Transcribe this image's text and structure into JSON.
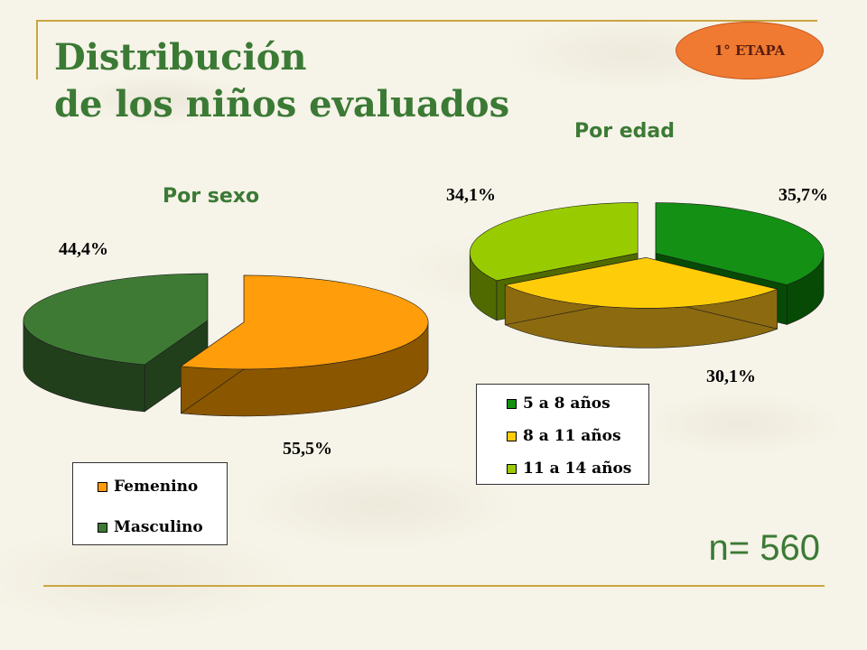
{
  "title_line1": "Distribución",
  "title_line2": "de los niños evaluados",
  "badge": "1° ETAPA",
  "n_label": "n= 560",
  "chart_data": [
    {
      "type": "pie",
      "title": "Por sexo",
      "three_d": true,
      "legend_position": "bottom-left",
      "slices": [
        {
          "label": "Femenino",
          "value": 55.5,
          "display": "55,5%",
          "color": "#ff9d0a",
          "side_color": "#8a5600"
        },
        {
          "label": "Masculino",
          "value": 44.4,
          "display": "44,4%",
          "color": "#3f7a35",
          "side_color": "#223f1c"
        }
      ]
    },
    {
      "type": "pie",
      "title": "Por edad",
      "three_d": true,
      "legend_position": "bottom",
      "slices": [
        {
          "label": "5 a 8 años",
          "value": 35.7,
          "display": "35,7%",
          "color": "#149014",
          "side_color": "#064a06"
        },
        {
          "label": "8 a 11 años",
          "value": 30.1,
          "display": "30,1%",
          "color": "#ffcc0a",
          "side_color": "#8c6a10"
        },
        {
          "label": "11 a 14 años",
          "value": 34.1,
          "display": "34,1%",
          "color": "#99cc00",
          "side_color": "#506a00"
        }
      ]
    }
  ]
}
